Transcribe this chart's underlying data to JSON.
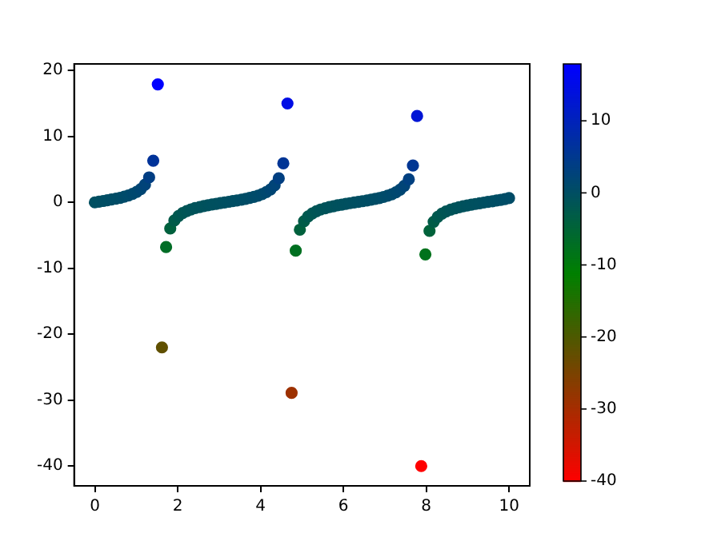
{
  "chart_data": {
    "type": "scatter",
    "x": [
      0,
      0.1,
      0.2,
      0.3,
      0.4,
      0.51,
      0.61,
      0.71,
      0.81,
      0.91,
      1.01,
      1.11,
      1.21,
      1.31,
      1.41,
      1.52,
      1.62,
      1.72,
      1.82,
      1.92,
      2.02,
      2.12,
      2.22,
      2.32,
      2.42,
      2.53,
      2.63,
      2.73,
      2.83,
      2.93,
      3.03,
      3.13,
      3.23,
      3.33,
      3.43,
      3.54,
      3.64,
      3.74,
      3.84,
      3.94,
      4.04,
      4.14,
      4.24,
      4.34,
      4.44,
      4.55,
      4.65,
      4.75,
      4.85,
      4.95,
      5.05,
      5.15,
      5.25,
      5.35,
      5.45,
      5.56,
      5.66,
      5.76,
      5.86,
      5.96,
      6.06,
      6.16,
      6.26,
      6.36,
      6.46,
      6.57,
      6.67,
      6.77,
      6.87,
      6.97,
      7.07,
      7.17,
      7.27,
      7.37,
      7.47,
      7.58,
      7.68,
      7.78,
      7.88,
      7.98,
      8.08,
      8.18,
      8.28,
      8.38,
      8.48,
      8.59,
      8.69,
      8.79,
      8.89,
      8.99,
      9.09,
      9.19,
      9.29,
      9.39,
      9.49,
      9.6,
      9.7,
      9.8,
      9.9,
      10
    ],
    "values": [
      0,
      0.1,
      0.21,
      0.31,
      0.43,
      0.55,
      0.69,
      0.86,
      1.05,
      1.29,
      1.59,
      2.02,
      2.67,
      3.79,
      6.33,
      17.9,
      -22.0,
      -6.78,
      -3.96,
      -2.75,
      -2.07,
      -1.63,
      -1.31,
      -1.07,
      -0.87,
      -0.71,
      -0.57,
      -0.44,
      -0.32,
      -0.22,
      -0.11,
      -0.01,
      0.09,
      0.19,
      0.3,
      0.42,
      0.54,
      0.68,
      0.84,
      1.02,
      1.25,
      1.56,
      1.96,
      2.58,
      3.64,
      5.92,
      15.0,
      -28.9,
      -7.33,
      -4.15,
      -2.85,
      -2.13,
      -1.67,
      -1.34,
      -1.09,
      -0.89,
      -0.72,
      -0.58,
      -0.45,
      -0.34,
      -0.23,
      -0.12,
      -0.02,
      0.08,
      0.18,
      0.29,
      0.4,
      0.53,
      0.66,
      0.82,
      1.01,
      1.23,
      1.53,
      1.92,
      2.51,
      3.5,
      5.59,
      13.1,
      -40.0,
      -7.89,
      -4.33,
      -2.94,
      -2.19,
      -1.71,
      -1.37,
      -1.11,
      -0.91,
      -0.74,
      -0.59,
      -0.46,
      -0.35,
      -0.24,
      -0.13,
      -0.03,
      0.07,
      0.17,
      0.28,
      0.39,
      0.51,
      0.65
    ],
    "cvalues": [
      0,
      0.1,
      0.21,
      0.31,
      0.43,
      0.55,
      0.69,
      0.86,
      1.05,
      1.29,
      1.59,
      2.02,
      2.67,
      3.79,
      6.33,
      17.9,
      -22.0,
      -6.78,
      -3.96,
      -2.75,
      -2.07,
      -1.63,
      -1.31,
      -1.07,
      -0.87,
      -0.71,
      -0.57,
      -0.44,
      -0.32,
      -0.22,
      -0.11,
      -0.01,
      0.09,
      0.19,
      0.3,
      0.42,
      0.54,
      0.68,
      0.84,
      1.02,
      1.25,
      1.56,
      1.96,
      2.58,
      3.64,
      5.92,
      15.0,
      -28.9,
      -7.33,
      -4.15,
      -2.85,
      -2.13,
      -1.67,
      -1.34,
      -1.09,
      -0.89,
      -0.72,
      -0.58,
      -0.45,
      -0.34,
      -0.23,
      -0.12,
      -0.02,
      0.08,
      0.18,
      0.29,
      0.4,
      0.53,
      0.66,
      0.82,
      1.01,
      1.23,
      1.53,
      1.92,
      2.51,
      3.5,
      5.59,
      13.1,
      -40.0,
      -7.89,
      -4.33,
      -2.94,
      -2.19,
      -1.71,
      -1.37,
      -1.11,
      -0.91,
      -0.74,
      -0.59,
      -0.46,
      -0.35,
      -0.24,
      -0.13,
      -0.03,
      0.07,
      0.17,
      0.28,
      0.39,
      0.51,
      0.65
    ],
    "xlim": [
      -0.5,
      10.5
    ],
    "ylim": [
      -43,
      21
    ],
    "xticks": [
      0,
      2,
      4,
      6,
      8,
      10
    ],
    "yticks": [
      -40,
      -30,
      -20,
      -10,
      0,
      10,
      20
    ],
    "clim": [
      -40,
      17.9
    ],
    "cticks": [
      -40,
      -30,
      -20,
      -10,
      0,
      10
    ],
    "marker": "circle",
    "grid": false,
    "legend": false
  }
}
